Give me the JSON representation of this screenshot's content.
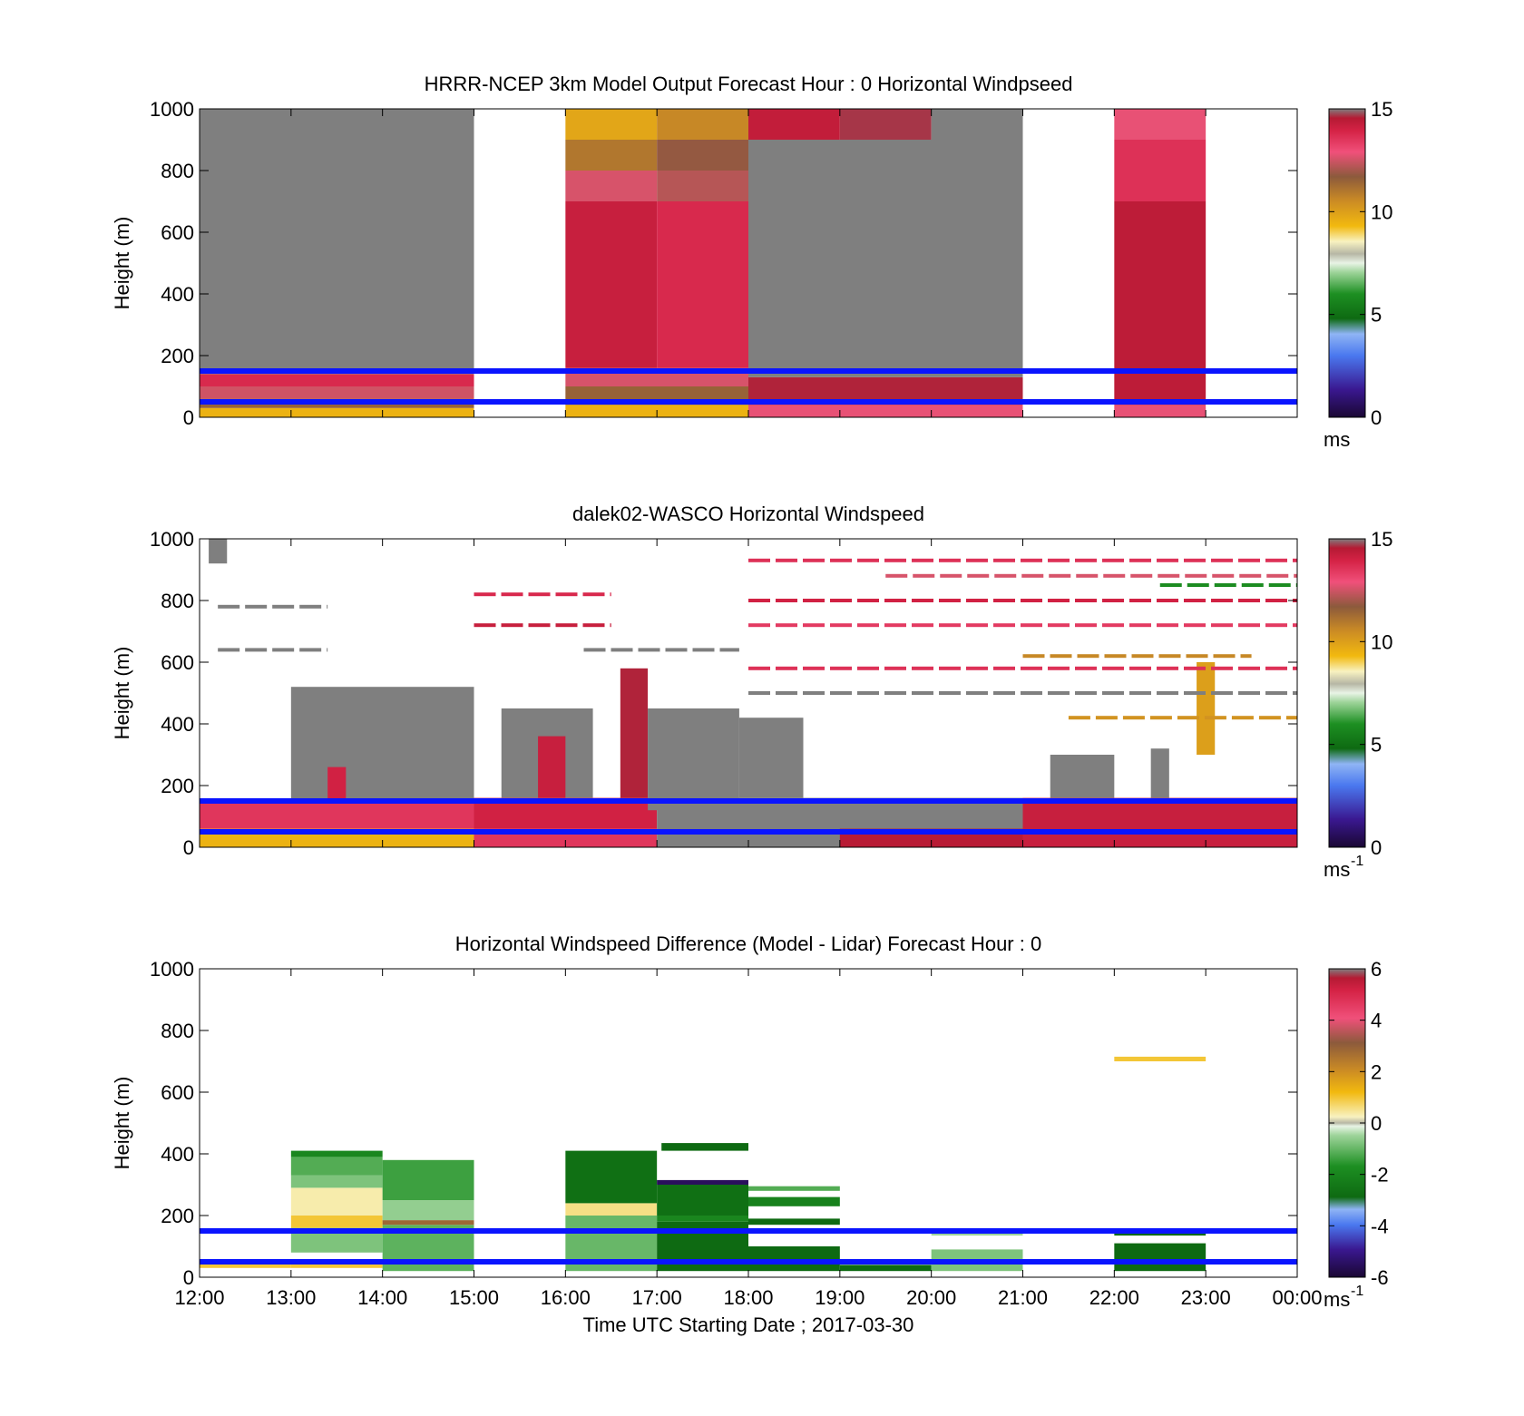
{
  "chart_data": [
    {
      "type": "heatmap",
      "title": "HRRR-NCEP 3km Model Output   Forecast Hour : 0 Horizontal Windpseed",
      "ylabel": "Height (m)",
      "ylim": [
        0,
        1000
      ],
      "yticks": [
        "0",
        "200",
        "400",
        "600",
        "800",
        "1000"
      ],
      "xlim": [
        12,
        24
      ],
      "xticks_shown": false,
      "colorbar": {
        "ticks": [
          "0",
          "5",
          "10",
          "15"
        ],
        "clim": [
          0,
          15
        ],
        "unit": "ms",
        "unit_sup": "",
        "palette": "speed"
      },
      "reference_lines_m": [
        50,
        150
      ],
      "cells": [
        {
          "t0": 12,
          "t1": 15,
          "h0": 0,
          "h1": 30,
          "v": 9.5
        },
        {
          "t0": 12,
          "t1": 15,
          "h0": 30,
          "h1": 60,
          "v": 11.5
        },
        {
          "t0": 12,
          "t1": 15,
          "h0": 60,
          "h1": 100,
          "v": 12.5
        },
        {
          "t0": 12,
          "t1": 15,
          "h0": 100,
          "h1": 140,
          "v": 13.8
        },
        {
          "t0": 12,
          "t1": 15,
          "h0": 140,
          "h1": 1000,
          "v": 16
        },
        {
          "t0": 16,
          "t1": 18,
          "h0": 0,
          "h1": 40,
          "v": 9.5
        },
        {
          "t0": 16,
          "t1": 18,
          "h0": 40,
          "h1": 100,
          "v": 11.5
        },
        {
          "t0": 16,
          "t1": 18,
          "h0": 100,
          "h1": 160,
          "v": 12.6
        },
        {
          "t0": 16,
          "t1": 17,
          "h0": 160,
          "h1": 700,
          "v": 14.2
        },
        {
          "t0": 17,
          "t1": 18,
          "h0": 160,
          "h1": 700,
          "v": 13.8
        },
        {
          "t0": 16,
          "t1": 17,
          "h0": 700,
          "h1": 800,
          "v": 12.6
        },
        {
          "t0": 17,
          "t1": 18,
          "h0": 700,
          "h1": 800,
          "v": 12.2
        },
        {
          "t0": 16,
          "t1": 17,
          "h0": 800,
          "h1": 900,
          "v": 11
        },
        {
          "t0": 17,
          "t1": 18,
          "h0": 800,
          "h1": 900,
          "v": 11.8
        },
        {
          "t0": 16,
          "t1": 17,
          "h0": 900,
          "h1": 1000,
          "v": 9.8
        },
        {
          "t0": 17,
          "t1": 18,
          "h0": 900,
          "h1": 1000,
          "v": 10.6
        },
        {
          "t0": 18,
          "t1": 21,
          "h0": 0,
          "h1": 40,
          "v": 12.8
        },
        {
          "t0": 18,
          "t1": 21,
          "h0": 40,
          "h1": 130,
          "v": 14.6
        },
        {
          "t0": 18,
          "t1": 21,
          "h0": 130,
          "h1": 900,
          "v": 16
        },
        {
          "t0": 18,
          "t1": 19,
          "h0": 900,
          "h1": 1000,
          "v": 14.3
        },
        {
          "t0": 19,
          "t1": 20,
          "h0": 900,
          "h1": 1000,
          "v": 14.7
        },
        {
          "t0": 20,
          "t1": 21,
          "h0": 900,
          "h1": 1000,
          "v": 16
        },
        {
          "t0": 22,
          "t1": 23,
          "h0": 0,
          "h1": 40,
          "v": 12.8
        },
        {
          "t0": 22,
          "t1": 23,
          "h0": 40,
          "h1": 700,
          "v": 14.4
        },
        {
          "t0": 22,
          "t1": 23,
          "h0": 700,
          "h1": 900,
          "v": 13.6
        },
        {
          "t0": 22,
          "t1": 23,
          "h0": 900,
          "h1": 1000,
          "v": 12.8
        }
      ]
    },
    {
      "type": "heatmap",
      "title": "dalek02-WASCO  Horizontal Windspeed",
      "ylabel": "Height (m)",
      "ylim": [
        0,
        1000
      ],
      "yticks": [
        "0",
        "200",
        "400",
        "600",
        "800",
        "1000"
      ],
      "xlim": [
        12,
        24
      ],
      "xticks_shown": false,
      "colorbar": {
        "ticks": [
          "0",
          "5",
          "10",
          "15"
        ],
        "clim": [
          0,
          15
        ],
        "unit": "ms",
        "unit_sup": "-1",
        "palette": "speed"
      },
      "reference_lines_m": [
        50,
        150
      ],
      "cells": [
        {
          "t0": 12,
          "t1": 15,
          "h0": 0,
          "h1": 60,
          "v": 9.5
        },
        {
          "t0": 12,
          "t1": 15,
          "h0": 60,
          "h1": 150,
          "v": 13.5
        },
        {
          "t0": 13,
          "t1": 15,
          "h0": 150,
          "h1": 520,
          "v": 16
        },
        {
          "t0": 13.4,
          "t1": 13.6,
          "h0": 150,
          "h1": 260,
          "v": 14
        },
        {
          "t0": 12.1,
          "t1": 12.3,
          "h0": 920,
          "h1": 1000,
          "v": 16
        },
        {
          "t0": 15,
          "t1": 17,
          "h0": 0,
          "h1": 60,
          "v": 13.5
        },
        {
          "t0": 15,
          "t1": 17,
          "h0": 60,
          "h1": 160,
          "v": 14
        },
        {
          "t0": 15.3,
          "t1": 16.3,
          "h0": 160,
          "h1": 450,
          "v": 16
        },
        {
          "t0": 15.7,
          "t1": 16,
          "h0": 160,
          "h1": 360,
          "v": 14.2
        },
        {
          "t0": 16.6,
          "t1": 16.9,
          "h0": 160,
          "h1": 580,
          "v": 14.6
        },
        {
          "t0": 16.9,
          "t1": 17.9,
          "h0": 120,
          "h1": 450,
          "v": 16
        },
        {
          "t0": 17,
          "t1": 21,
          "h0": 0,
          "h1": 160,
          "v": 16
        },
        {
          "t0": 17.9,
          "t1": 18.6,
          "h0": 160,
          "h1": 420,
          "v": 16
        },
        {
          "t0": 19,
          "t1": 21,
          "h0": 0,
          "h1": 60,
          "v": 14.5
        },
        {
          "t0": 21,
          "t1": 24,
          "h0": 0,
          "h1": 160,
          "v": 14.2
        },
        {
          "t0": 21.3,
          "t1": 22,
          "h0": 160,
          "h1": 300,
          "v": 16
        },
        {
          "t0": 22.4,
          "t1": 22.6,
          "h0": 160,
          "h1": 320,
          "v": 16
        },
        {
          "t0": 22.9,
          "t1": 23.1,
          "h0": 300,
          "h1": 600,
          "v": 10
        }
      ],
      "streaks": [
        {
          "t0": 12.2,
          "t1": 13.4,
          "h": 780,
          "v": 16
        },
        {
          "t0": 12.2,
          "t1": 13.4,
          "h": 640,
          "v": 16
        },
        {
          "t0": 15.0,
          "t1": 16.5,
          "h": 820,
          "v": 14.4
        },
        {
          "t0": 15.0,
          "t1": 16.5,
          "h": 720,
          "v": 14.8
        },
        {
          "t0": 16.2,
          "t1": 17.9,
          "h": 640,
          "v": 16
        },
        {
          "t0": 18.0,
          "t1": 24.0,
          "h": 930,
          "v": 14.2
        },
        {
          "t0": 18.0,
          "t1": 24.0,
          "h": 800,
          "v": 14.6
        },
        {
          "t0": 18.0,
          "t1": 24.0,
          "h": 720,
          "v": 14
        },
        {
          "t0": 18.0,
          "t1": 24.0,
          "h": 580,
          "v": 14.2
        },
        {
          "t0": 18.0,
          "t1": 24.0,
          "h": 500,
          "v": 16
        },
        {
          "t0": 19.5,
          "t1": 24.0,
          "h": 880,
          "v": 12.6
        },
        {
          "t0": 21.0,
          "t1": 23.5,
          "h": 620,
          "v": 10
        },
        {
          "t0": 21.5,
          "t1": 24.0,
          "h": 420,
          "v": 10.3
        },
        {
          "t0": 22.5,
          "t1": 24.0,
          "h": 850,
          "v": 6.5
        }
      ]
    },
    {
      "type": "heatmap",
      "title": "Horizontal Windspeed Difference (Model - Lidar) Forecast Hour : 0",
      "ylabel": "Height (m)",
      "xlabel": "Time UTC  Starting Date ; 2017-03-30",
      "ylim": [
        0,
        1000
      ],
      "yticks": [
        "0",
        "200",
        "400",
        "600",
        "800",
        "1000"
      ],
      "xlim": [
        12,
        24
      ],
      "xticks": [
        "12:00",
        "13:00",
        "14:00",
        "15:00",
        "16:00",
        "17:00",
        "18:00",
        "19:00",
        "20:00",
        "21:00",
        "22:00",
        "23:00",
        "00:00"
      ],
      "colorbar": {
        "ticks": [
          "-6",
          "-4",
          "-2",
          "0",
          "2",
          "4",
          "6"
        ],
        "clim": [
          -6,
          6
        ],
        "unit": "ms",
        "unit_sup": "-1",
        "palette": "diff"
      },
      "reference_lines_m": [
        50,
        150
      ],
      "cells": [
        {
          "t0": 12,
          "t1": 13,
          "h0": 30,
          "h1": 45,
          "v": 1.0
        },
        {
          "t0": 13,
          "t1": 14,
          "h0": 30,
          "h1": 45,
          "v": 1.0
        },
        {
          "t0": 13,
          "t1": 14,
          "h0": 80,
          "h1": 160,
          "v": -0.8
        },
        {
          "t0": 13,
          "t1": 14,
          "h0": 160,
          "h1": 200,
          "v": 1.0
        },
        {
          "t0": 13,
          "t1": 14,
          "h0": 200,
          "h1": 290,
          "v": 0.4
        },
        {
          "t0": 13,
          "t1": 14,
          "h0": 290,
          "h1": 330,
          "v": -0.8
        },
        {
          "t0": 13,
          "t1": 14,
          "h0": 330,
          "h1": 390,
          "v": -1.2
        },
        {
          "t0": 13,
          "t1": 14,
          "h0": 390,
          "h1": 410,
          "v": -2.0
        },
        {
          "t0": 14,
          "t1": 15,
          "h0": 20,
          "h1": 170,
          "v": -1.1
        },
        {
          "t0": 14,
          "t1": 15,
          "h0": 170,
          "h1": 185,
          "v": 2.8
        },
        {
          "t0": 14,
          "t1": 15,
          "h0": 185,
          "h1": 250,
          "v": -0.6
        },
        {
          "t0": 14,
          "t1": 15,
          "h0": 250,
          "h1": 380,
          "v": -1.4
        },
        {
          "t0": 16,
          "t1": 17,
          "h0": 20,
          "h1": 200,
          "v": -1.0
        },
        {
          "t0": 16,
          "t1": 17,
          "h0": 200,
          "h1": 240,
          "v": 0.6
        },
        {
          "t0": 16,
          "t1": 17,
          "h0": 240,
          "h1": 410,
          "v": -2.8
        },
        {
          "t0": 17,
          "t1": 18,
          "h0": 20,
          "h1": 180,
          "v": -3.0
        },
        {
          "t0": 17,
          "t1": 18,
          "h0": 180,
          "h1": 200,
          "v": -2.0
        },
        {
          "t0": 17,
          "t1": 18,
          "h0": 200,
          "h1": 300,
          "v": -2.8
        },
        {
          "t0": 17,
          "t1": 18,
          "h0": 300,
          "h1": 315,
          "v": -5.5
        },
        {
          "t0": 17.05,
          "t1": 18,
          "h0": 410,
          "h1": 435,
          "v": -3.0
        },
        {
          "t0": 18,
          "t1": 19,
          "h0": 20,
          "h1": 100,
          "v": -3.0
        },
        {
          "t0": 18,
          "t1": 19,
          "h0": 170,
          "h1": 190,
          "v": -3.0
        },
        {
          "t0": 18,
          "t1": 19,
          "h0": 230,
          "h1": 260,
          "v": -2.2
        },
        {
          "t0": 18,
          "t1": 19,
          "h0": 280,
          "h1": 295,
          "v": -1.2
        },
        {
          "t0": 19,
          "t1": 20,
          "h0": 20,
          "h1": 40,
          "v": -3.0
        },
        {
          "t0": 20,
          "t1": 21,
          "h0": 20,
          "h1": 90,
          "v": -0.8
        },
        {
          "t0": 20,
          "t1": 21,
          "h0": 135,
          "h1": 145,
          "v": -0.5
        },
        {
          "t0": 22,
          "t1": 23,
          "h0": 20,
          "h1": 110,
          "v": -3.0
        },
        {
          "t0": 22,
          "t1": 23,
          "h0": 135,
          "h1": 148,
          "v": -3.0
        },
        {
          "t0": 22,
          "t1": 23,
          "h0": 700,
          "h1": 715,
          "v": 1.0
        }
      ]
    }
  ]
}
